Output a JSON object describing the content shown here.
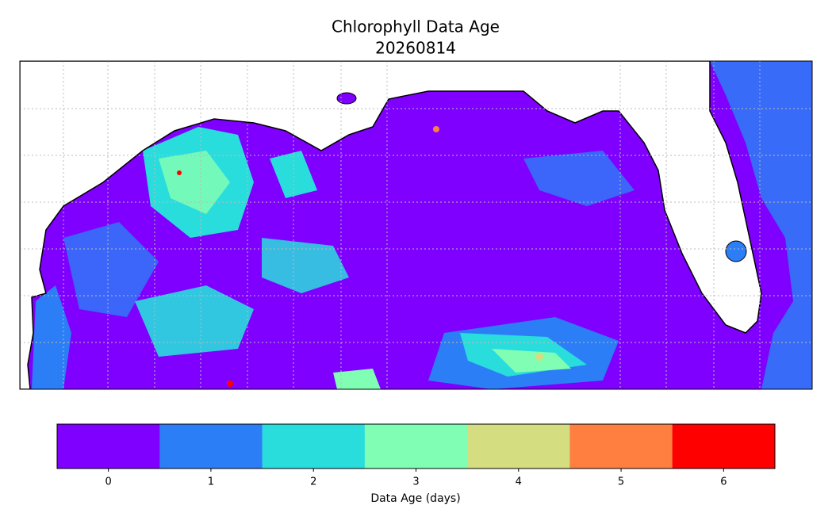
{
  "title": "Chlorophyll Data Age",
  "subtitle": "20260814",
  "colorbar": {
    "label": "Data Age (days)",
    "ticks": [
      0,
      1,
      2,
      3,
      4,
      5,
      6
    ],
    "colors": [
      "#7f00ff",
      "#2c7ef7",
      "#2adddd",
      "#80ffb4",
      "#d4dd80",
      "#ff7f41",
      "#ff0000"
    ]
  }
}
